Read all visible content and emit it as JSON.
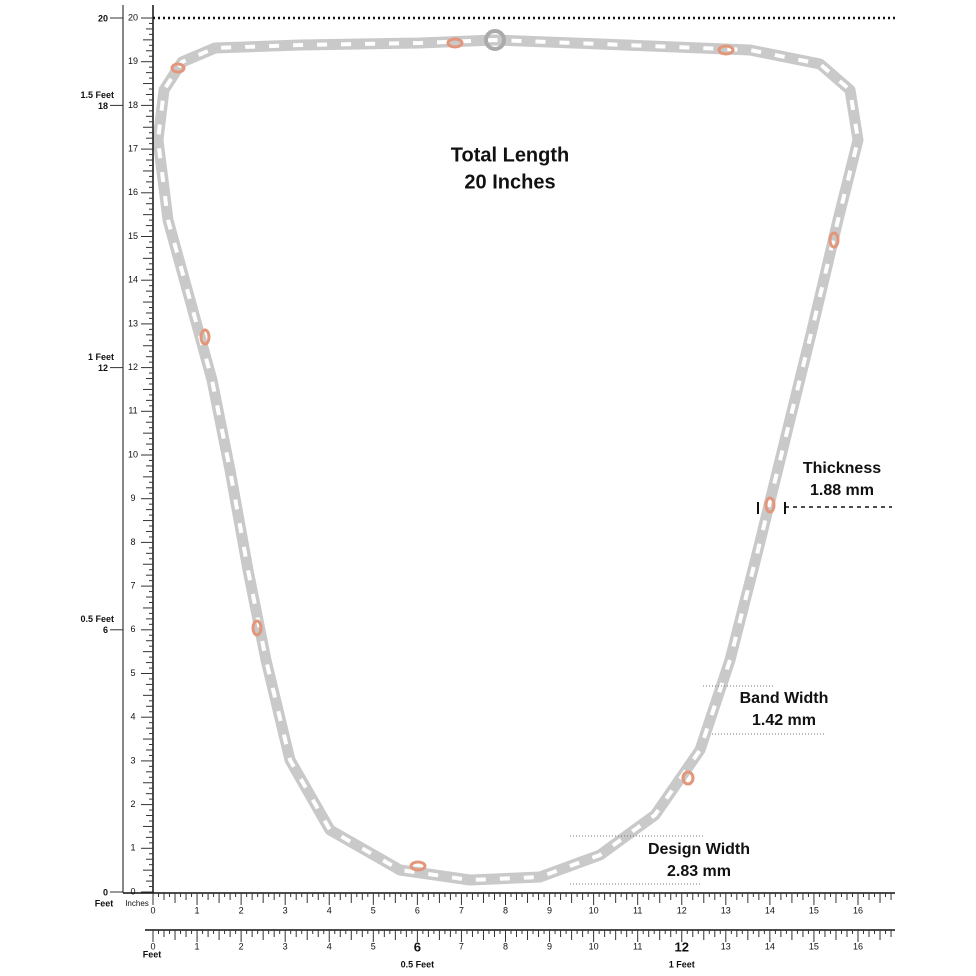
{
  "title_lines": [
    "Total Length",
    "20 Inches"
  ],
  "annotations": [
    {
      "label": "Thickness",
      "value": "1.88 mm"
    },
    {
      "label": "Band Width",
      "value": "1.42 mm"
    },
    {
      "label": "Design Width",
      "value": "2.83 mm"
    }
  ],
  "vertical_ruler": {
    "labels": [
      0,
      1,
      2,
      3,
      4,
      5,
      6,
      7,
      8,
      9,
      10,
      11,
      12,
      13,
      14,
      15,
      16,
      17,
      18,
      19,
      20
    ],
    "outer_marks": [
      {
        "value": 20
      },
      {
        "value": 18,
        "feet": "1.5 Feet"
      },
      {
        "value": 12,
        "feet": "1 Feet"
      },
      {
        "value": 6,
        "feet": "0.5 Feet"
      },
      {
        "value": 0
      }
    ]
  },
  "horizontal_ruler": {
    "unit_labels": [
      "Feet",
      "Inches"
    ],
    "labels": [
      0,
      1,
      2,
      3,
      4,
      5,
      6,
      7,
      8,
      9,
      10,
      11,
      12,
      13,
      14,
      15,
      16
    ]
  },
  "feet_ruler": {
    "unit_label": "Feet",
    "labels": [
      0,
      1,
      2,
      3,
      4,
      5,
      6,
      7,
      8,
      9,
      10,
      11,
      12,
      13,
      14,
      15,
      16
    ],
    "feet_marks": [
      {
        "value": 6,
        "label": "0.5 Feet"
      },
      {
        "value": 12,
        "label": "1 Feet"
      }
    ]
  }
}
